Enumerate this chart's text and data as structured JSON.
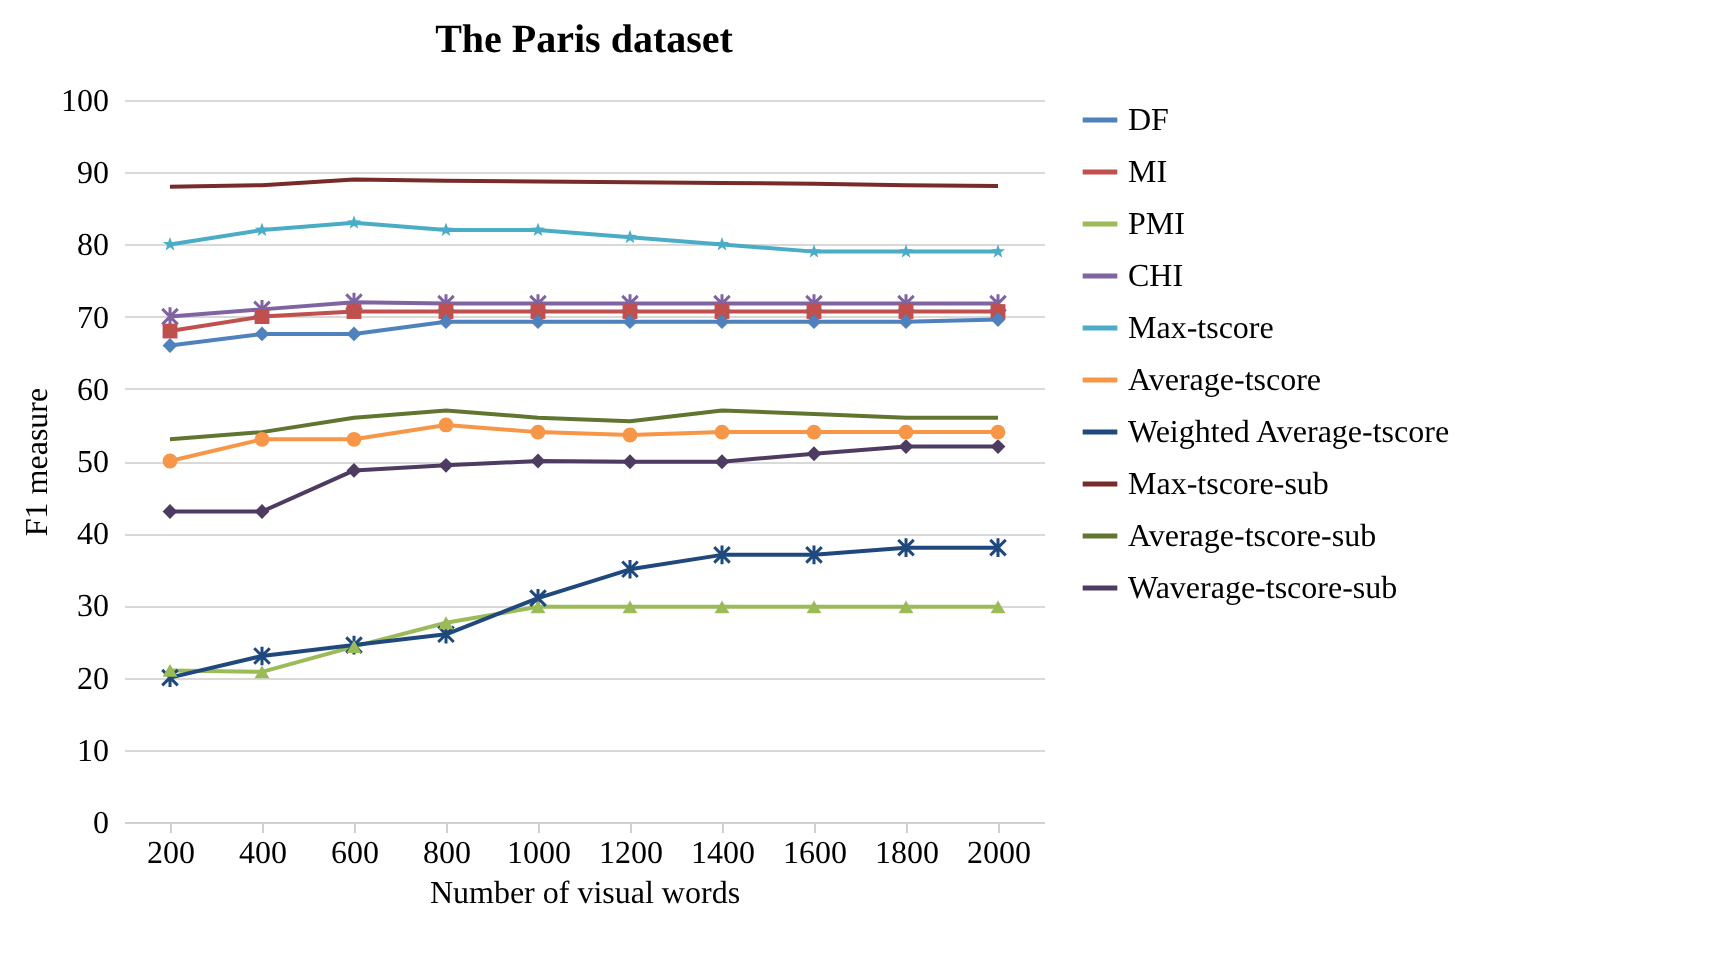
{
  "chart_data": {
    "type": "line",
    "title": "The Paris dataset",
    "xlabel": "Number of visual words",
    "ylabel": "F1 measure",
    "categories": [
      "200",
      "400",
      "600",
      "800",
      "1000",
      "1200",
      "1400",
      "1600",
      "1800",
      "2000"
    ],
    "ylim": [
      0,
      100
    ],
    "yticks": [
      0,
      10,
      20,
      30,
      40,
      50,
      60,
      70,
      80,
      90,
      100
    ],
    "grid": "y",
    "legend": "right",
    "series": [
      {
        "name": "DF",
        "color": "#4f81bd",
        "marker": "diamond",
        "values": [
          66,
          67.6,
          67.6,
          69.3,
          69.3,
          69.3,
          69.3,
          69.3,
          69.3,
          69.6
        ]
      },
      {
        "name": "MI",
        "color": "#c0504d",
        "marker": "square",
        "values": [
          68,
          70,
          70.7,
          70.7,
          70.7,
          70.7,
          70.7,
          70.7,
          70.7,
          70.7
        ]
      },
      {
        "name": "PMI",
        "color": "#9bbb59",
        "marker": "triangle",
        "values": [
          21,
          20.8,
          24.3,
          27.6,
          29.8,
          29.8,
          29.8,
          29.8,
          29.8,
          29.8
        ]
      },
      {
        "name": "CHI",
        "color": "#8064a2",
        "marker": "cross",
        "values": [
          70,
          71,
          72,
          71.8,
          71.8,
          71.8,
          71.8,
          71.8,
          71.8,
          71.8
        ]
      },
      {
        "name": "Max-tscore",
        "color": "#4bacc6",
        "marker": "star",
        "values": [
          80,
          82,
          83,
          82,
          82,
          81,
          80,
          79,
          79,
          79
        ]
      },
      {
        "name": "Average-tscore",
        "color": "#f79646",
        "marker": "circle",
        "values": [
          50,
          53,
          53,
          55,
          54,
          53.6,
          54,
          54,
          54,
          54
        ]
      },
      {
        "name": "Weighted Average-tscore",
        "color": "#1f497d",
        "marker": "cross",
        "values": [
          20,
          23,
          24.5,
          26,
          31,
          35,
          37,
          37,
          38,
          38
        ]
      },
      {
        "name": "Max-tscore-sub",
        "color": "#772c2a",
        "marker": "none",
        "values": [
          88,
          88.2,
          89,
          88.8,
          88.7,
          88.6,
          88.5,
          88.4,
          88.2,
          88.1
        ]
      },
      {
        "name": "Average-tscore-sub",
        "color": "#5f7530",
        "marker": "none",
        "values": [
          53,
          54,
          56,
          57,
          56,
          55.5,
          57,
          56.5,
          56,
          56
        ]
      },
      {
        "name": "Waverage-tscore-sub",
        "color": "#4d3b62",
        "marker": "diamond",
        "values": [
          43,
          43,
          48.7,
          49.4,
          50,
          49.9,
          49.9,
          51,
          52,
          52
        ]
      }
    ]
  }
}
